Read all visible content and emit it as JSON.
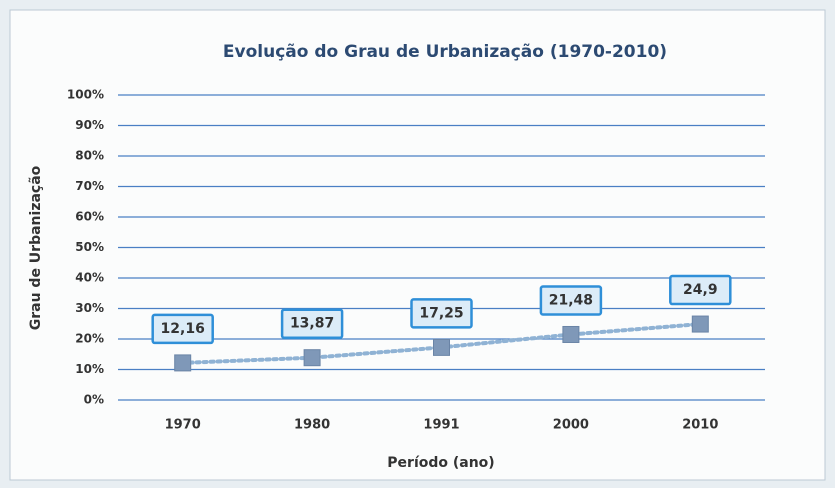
{
  "chart_data": {
    "type": "line",
    "title": "Evolução do Grau de Urbanização (1970-2010)",
    "x_label": "Período (ano)",
    "y_label": "Grau de Urbanização",
    "categories": [
      "1970",
      "1980",
      "1991",
      "2000",
      "2010"
    ],
    "series": [
      {
        "color": "#7f98b8",
        "values": [
          12.16,
          13.87,
          17.25,
          21.48,
          24.9
        ],
        "value_labels": [
          "12,16",
          "13,87",
          "17,25",
          "21,48",
          "24,9"
        ]
      }
    ],
    "ylim": [
      0,
      100
    ],
    "yticks": [
      {
        "value": 0,
        "label": "0%"
      },
      {
        "value": 10,
        "label": "10%"
      },
      {
        "value": 20,
        "label": "20%"
      },
      {
        "value": 30,
        "label": "30%"
      },
      {
        "value": 40,
        "label": "40%"
      },
      {
        "value": 50,
        "label": "50%"
      },
      {
        "value": 60,
        "label": "60%"
      },
      {
        "value": 70,
        "label": "70%"
      },
      {
        "value": 80,
        "label": "80%"
      },
      {
        "value": 90,
        "label": "90%"
      },
      {
        "value": 100,
        "label": "100%"
      }
    ],
    "grid": true
  }
}
